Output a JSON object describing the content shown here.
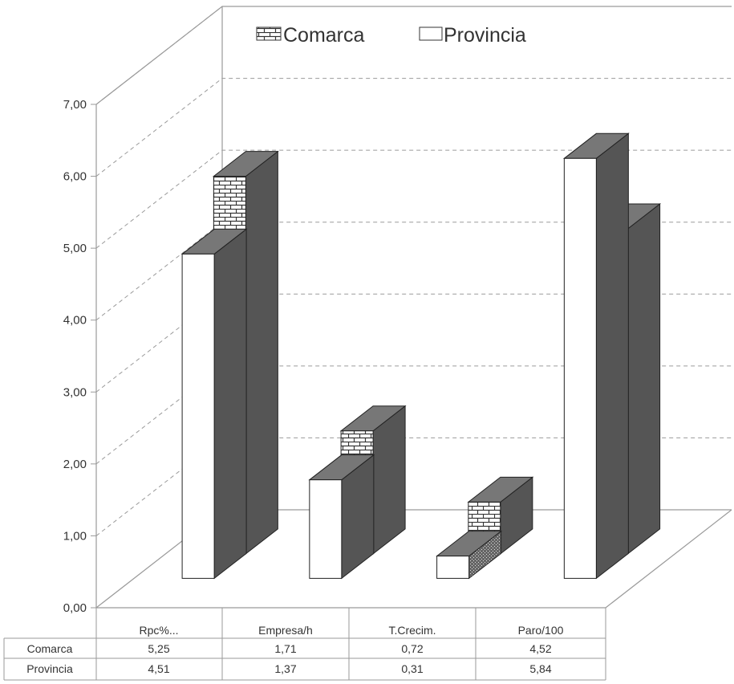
{
  "chart_data": {
    "type": "bar",
    "categories": [
      "Rpc%...",
      "Empresa/h",
      "T.Crecim.",
      "Paro/100"
    ],
    "series": [
      {
        "name": "Comarca",
        "values": [
          5.25,
          1.71,
          0.72,
          4.52
        ]
      },
      {
        "name": "Provincia",
        "values": [
          4.51,
          1.37,
          0.31,
          5.84
        ]
      }
    ],
    "value_labels": {
      "Comarca": [
        "5,25",
        "1,71",
        "0,72",
        "4,52"
      ],
      "Provincia": [
        "4,51",
        "1,37",
        "0,31",
        "5,84"
      ]
    },
    "y_ticks": [
      "0,00",
      "1,00",
      "2,00",
      "3,00",
      "4,00",
      "5,00",
      "6,00",
      "7,00"
    ],
    "ylim": [
      0,
      7
    ],
    "grid": true,
    "legend": "top",
    "data_table": true,
    "three_d": true,
    "colors": {
      "comarca_face": "#ffffff",
      "comarca_brick": "#333333",
      "side": "#555555",
      "top": "#777777",
      "provincia_face": "#ffffff"
    }
  }
}
